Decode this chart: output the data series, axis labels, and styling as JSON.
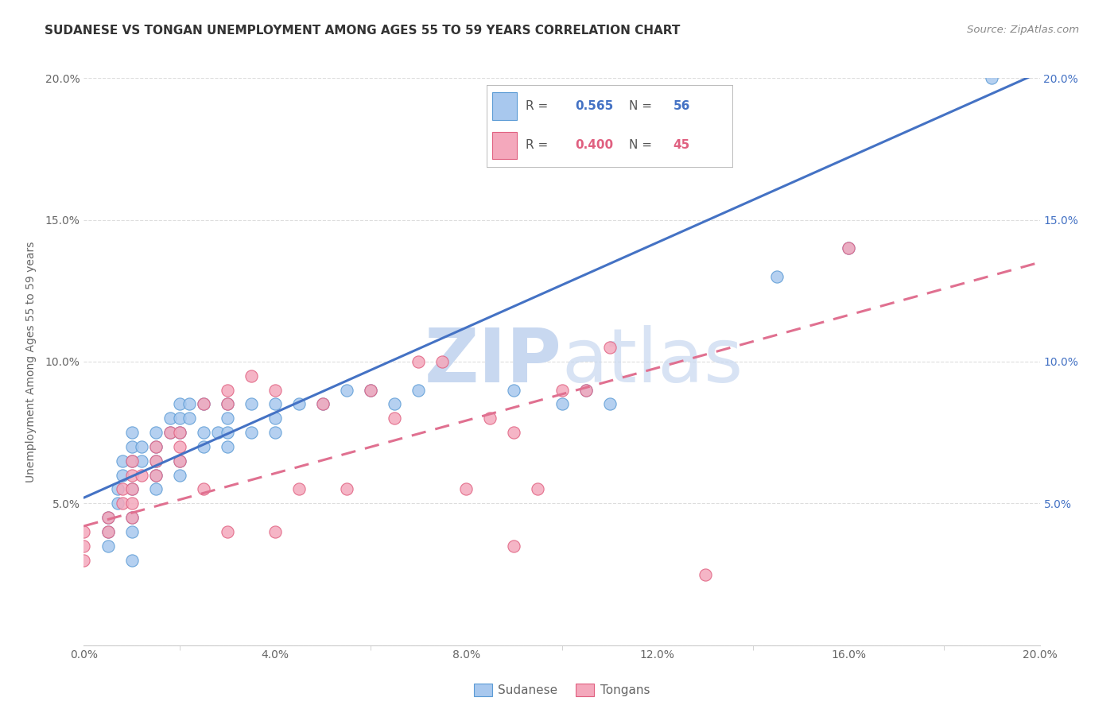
{
  "title": "SUDANESE VS TONGAN UNEMPLOYMENT AMONG AGES 55 TO 59 YEARS CORRELATION CHART",
  "source": "Source: ZipAtlas.com",
  "ylabel": "Unemployment Among Ages 55 to 59 years",
  "xlim": [
    0.0,
    0.2
  ],
  "ylim": [
    0.0,
    0.2
  ],
  "xticks": [
    0.0,
    0.04,
    0.08,
    0.12,
    0.16,
    0.2
  ],
  "yticks_left": [
    0.0,
    0.05,
    0.1,
    0.15,
    0.2
  ],
  "yticks_right": [
    0.05,
    0.1,
    0.15,
    0.2
  ],
  "sudanese_R": 0.565,
  "sudanese_N": 56,
  "tongan_R": 0.4,
  "tongan_N": 45,
  "sudanese_color": "#a8c8ee",
  "tongan_color": "#f4a8bc",
  "sudanese_edge_color": "#5b9bd5",
  "tongan_edge_color": "#e06080",
  "sudanese_line_color": "#4472c4",
  "tongan_line_color": "#e07090",
  "right_axis_color": "#4472c4",
  "watermark_color": "#c8d8f0",
  "background_color": "#ffffff",
  "grid_color": "#dddddd",
  "title_color": "#333333",
  "label_color": "#666666",
  "sudanese_line_fixed": [
    [
      0.0,
      0.052
    ],
    [
      0.2,
      0.202
    ]
  ],
  "tongan_line_fixed": [
    [
      0.0,
      0.042
    ],
    [
      0.2,
      0.135
    ]
  ],
  "sudanese_scatter_x": [
    0.005,
    0.005,
    0.005,
    0.007,
    0.007,
    0.008,
    0.008,
    0.01,
    0.01,
    0.01,
    0.01,
    0.01,
    0.01,
    0.01,
    0.012,
    0.012,
    0.015,
    0.015,
    0.015,
    0.015,
    0.015,
    0.018,
    0.018,
    0.02,
    0.02,
    0.02,
    0.02,
    0.02,
    0.022,
    0.022,
    0.025,
    0.025,
    0.025,
    0.028,
    0.03,
    0.03,
    0.03,
    0.03,
    0.035,
    0.035,
    0.04,
    0.04,
    0.04,
    0.045,
    0.05,
    0.055,
    0.06,
    0.065,
    0.07,
    0.09,
    0.1,
    0.105,
    0.11,
    0.145,
    0.16,
    0.19
  ],
  "sudanese_scatter_y": [
    0.045,
    0.04,
    0.035,
    0.055,
    0.05,
    0.06,
    0.065,
    0.075,
    0.07,
    0.065,
    0.055,
    0.045,
    0.04,
    0.03,
    0.07,
    0.065,
    0.075,
    0.07,
    0.065,
    0.06,
    0.055,
    0.08,
    0.075,
    0.085,
    0.08,
    0.075,
    0.065,
    0.06,
    0.085,
    0.08,
    0.085,
    0.075,
    0.07,
    0.075,
    0.085,
    0.08,
    0.075,
    0.07,
    0.085,
    0.075,
    0.085,
    0.08,
    0.075,
    0.085,
    0.085,
    0.09,
    0.09,
    0.085,
    0.09,
    0.09,
    0.085,
    0.09,
    0.085,
    0.13,
    0.14,
    0.2
  ],
  "tongan_scatter_x": [
    0.0,
    0.0,
    0.0,
    0.005,
    0.005,
    0.008,
    0.008,
    0.01,
    0.01,
    0.01,
    0.01,
    0.01,
    0.012,
    0.015,
    0.015,
    0.015,
    0.018,
    0.02,
    0.02,
    0.02,
    0.025,
    0.025,
    0.03,
    0.03,
    0.03,
    0.035,
    0.04,
    0.04,
    0.045,
    0.05,
    0.055,
    0.06,
    0.065,
    0.07,
    0.075,
    0.08,
    0.085,
    0.09,
    0.09,
    0.095,
    0.1,
    0.105,
    0.11,
    0.13,
    0.16
  ],
  "tongan_scatter_y": [
    0.04,
    0.035,
    0.03,
    0.045,
    0.04,
    0.055,
    0.05,
    0.065,
    0.06,
    0.055,
    0.05,
    0.045,
    0.06,
    0.07,
    0.065,
    0.06,
    0.075,
    0.075,
    0.07,
    0.065,
    0.085,
    0.055,
    0.09,
    0.085,
    0.04,
    0.095,
    0.09,
    0.04,
    0.055,
    0.085,
    0.055,
    0.09,
    0.08,
    0.1,
    0.1,
    0.055,
    0.08,
    0.075,
    0.035,
    0.055,
    0.09,
    0.09,
    0.105,
    0.025,
    0.14
  ]
}
